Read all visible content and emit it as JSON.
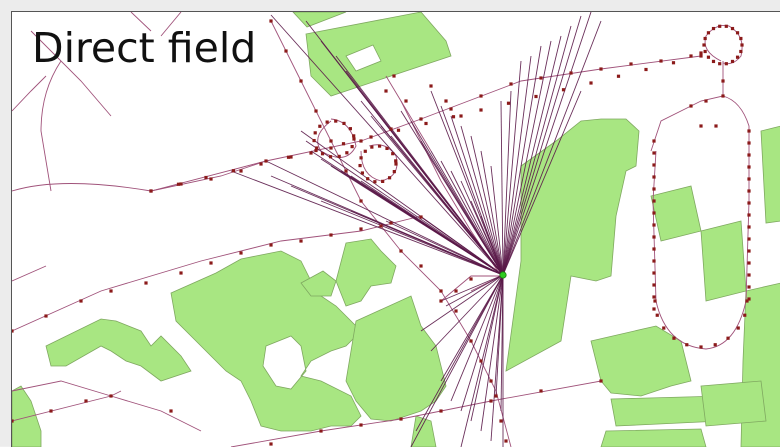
{
  "map": {
    "title": "Direct field",
    "colors": {
      "building_fill": "#a8e682",
      "building_stroke": "#7fa860",
      "path_line": "#a0527a",
      "ray_line": "#5a1848",
      "node": "#8b1a1a",
      "origin_point": "#2ecc20"
    },
    "icons": [
      "origin-point-icon"
    ]
  }
}
